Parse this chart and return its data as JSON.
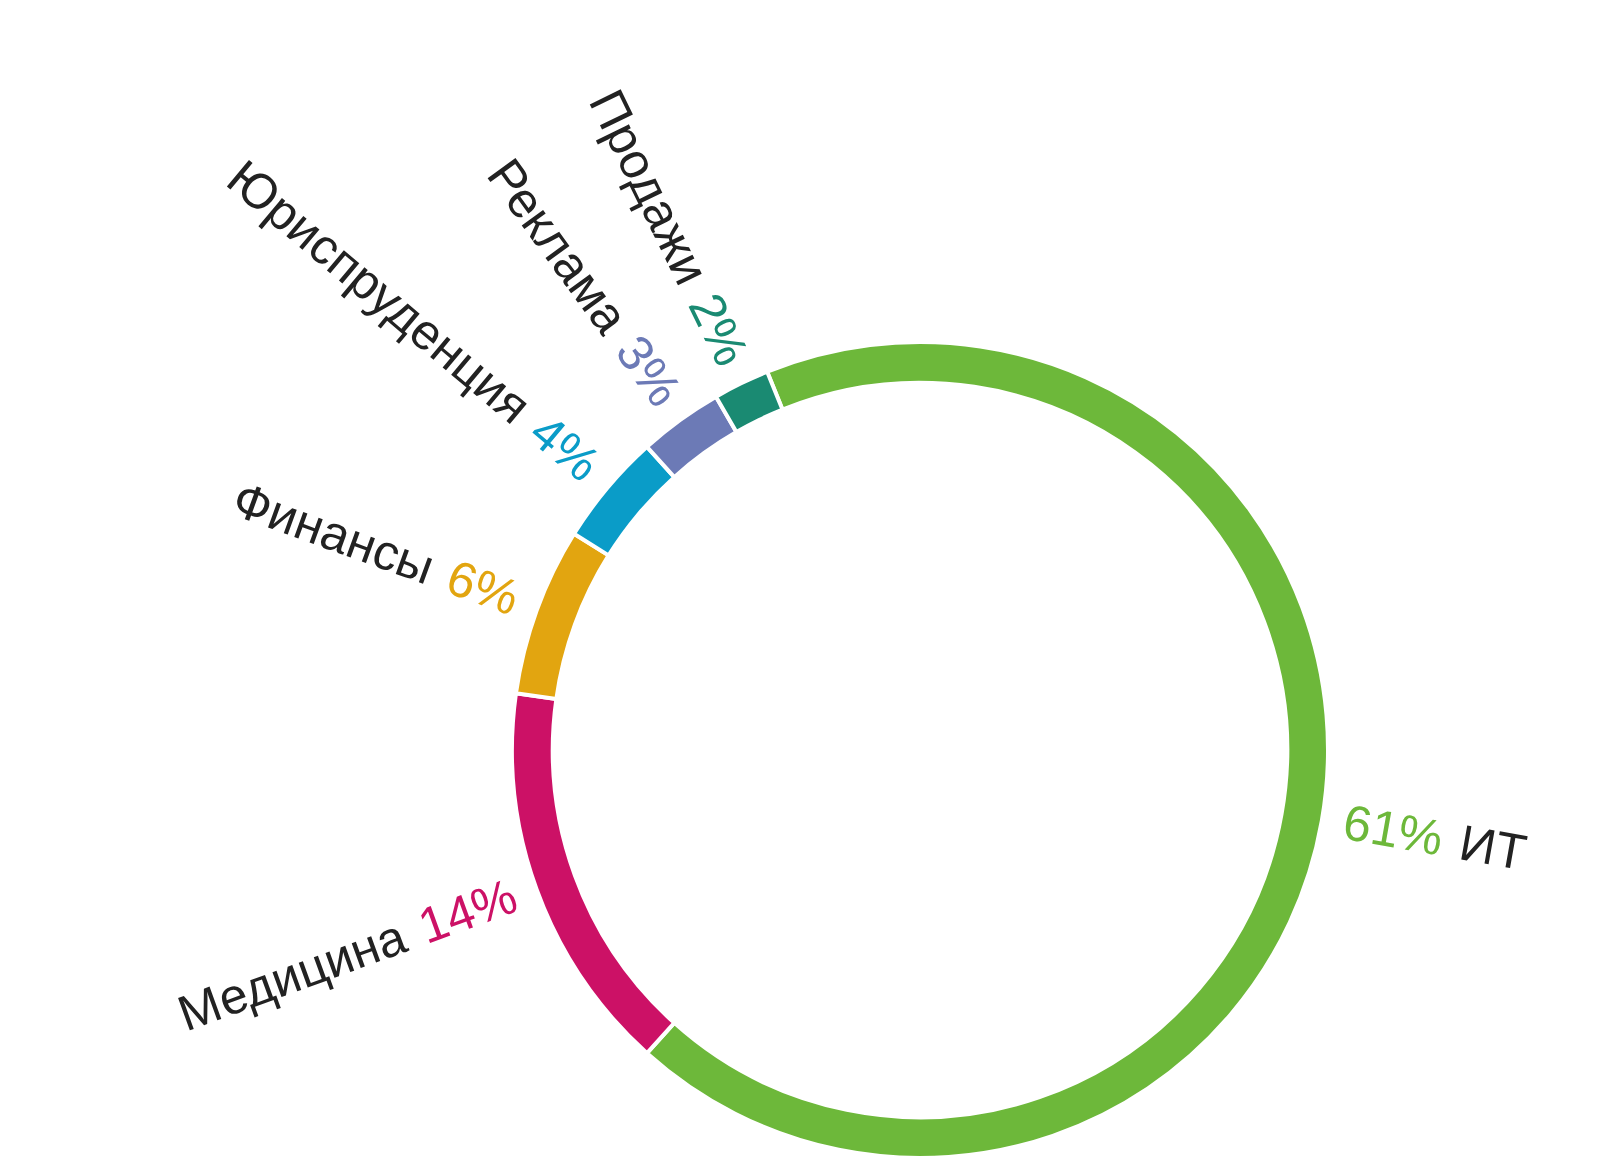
{
  "chart_data": {
    "type": "donut",
    "categories": [
      "ИТ",
      "Медицина",
      "Финансы",
      "Юриспруденция",
      "Реклама",
      "Продажи"
    ],
    "values": [
      61,
      14,
      6,
      4,
      3,
      2
    ],
    "colors": [
      "#6db83a",
      "#cc1166",
      "#e2a510",
      "#0a9cc8",
      "#6c7ab6",
      "#1a8a72"
    ],
    "data_labels": true,
    "value_labels": [
      "61%",
      "14%",
      "6%",
      "4%",
      "3%",
      "2%"
    ]
  }
}
